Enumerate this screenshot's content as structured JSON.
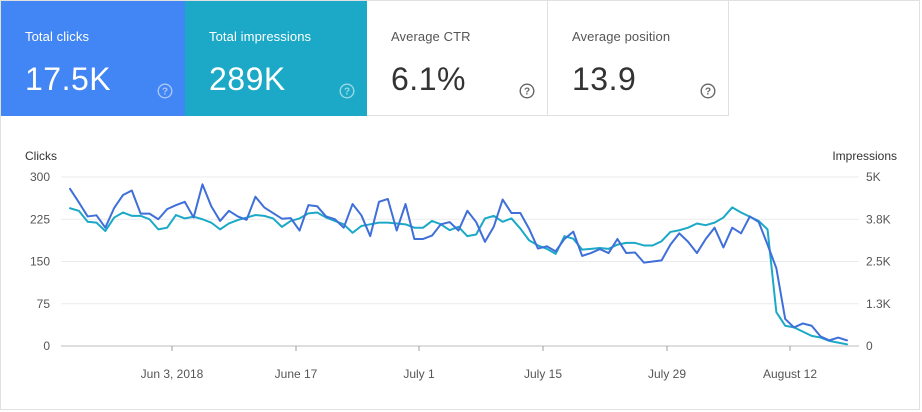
{
  "cards": [
    {
      "label": "Total clicks",
      "value": "17.5K",
      "active": true,
      "color": "#4285f4",
      "icon": "help-circle-icon"
    },
    {
      "label": "Total impressions",
      "value": "289K",
      "active": true,
      "color": "#1ba9c7",
      "icon": "help-circle-icon"
    },
    {
      "label": "Average CTR",
      "value": "6.1%",
      "active": false,
      "icon": "help-circle-icon"
    },
    {
      "label": "Average position",
      "value": "13.9",
      "active": false,
      "icon": "help-circle-icon"
    }
  ],
  "chart_data": {
    "type": "line",
    "left_axis": {
      "label": "Clicks",
      "ticks": [
        "0",
        "75",
        "150",
        "225",
        "300"
      ],
      "range": [
        0,
        300
      ]
    },
    "right_axis": {
      "label": "Impressions",
      "ticks": [
        "0",
        "1.3K",
        "2.5K",
        "3.8K",
        "5K"
      ],
      "range": [
        0,
        5000
      ]
    },
    "x_ticks": [
      "Jun 3, 2018",
      "June 17",
      "July 1",
      "July 15",
      "July 29",
      "August 12"
    ],
    "grid": true,
    "series": [
      {
        "name": "Clicks",
        "axis": "left",
        "color": "#3f6fd8",
        "values": [
          279,
          255,
          230,
          232,
          210,
          245,
          268,
          276,
          235,
          235,
          225,
          243,
          250,
          256,
          228,
          287,
          248,
          222,
          240,
          230,
          224,
          265,
          246,
          236,
          226,
          227,
          205,
          250,
          248,
          230,
          225,
          210,
          252,
          232,
          195,
          256,
          261,
          205,
          252,
          190,
          190,
          196,
          216,
          220,
          205,
          240,
          220,
          185,
          212,
          260,
          236,
          236,
          208,
          173,
          177,
          168,
          190,
          203,
          160,
          165,
          172,
          165,
          190,
          165,
          166,
          148,
          150,
          152,
          180,
          200,
          185,
          165,
          190,
          210,
          175,
          210,
          200,
          230,
          220,
          180,
          138,
          48,
          33,
          40,
          36,
          17,
          10,
          15,
          10
        ]
      },
      {
        "name": "Impressions",
        "axis": "right",
        "color": "#1ba9c7",
        "values": [
          4075,
          4000,
          3675,
          3650,
          3400,
          3800,
          3950,
          3850,
          3850,
          3750,
          3450,
          3500,
          3875,
          3775,
          3825,
          3750,
          3650,
          3450,
          3625,
          3725,
          3800,
          3875,
          3850,
          3775,
          3525,
          3700,
          3775,
          3925,
          3950,
          3800,
          3700,
          3600,
          3350,
          3550,
          3600,
          3650,
          3650,
          3625,
          3600,
          3500,
          3500,
          3700,
          3600,
          3425,
          3525,
          3250,
          3300,
          3775,
          3850,
          3675,
          3775,
          3475,
          3125,
          2975,
          2875,
          2725,
          3250,
          3175,
          2850,
          2875,
          2900,
          2875,
          3000,
          3050,
          3050,
          2975,
          2975,
          3100,
          3375,
          3425,
          3500,
          3625,
          3575,
          3650,
          3800,
          4100,
          3950,
          3825,
          3700,
          3450,
          1000,
          600,
          550,
          425,
          300,
          250,
          150,
          100,
          50
        ]
      }
    ]
  }
}
